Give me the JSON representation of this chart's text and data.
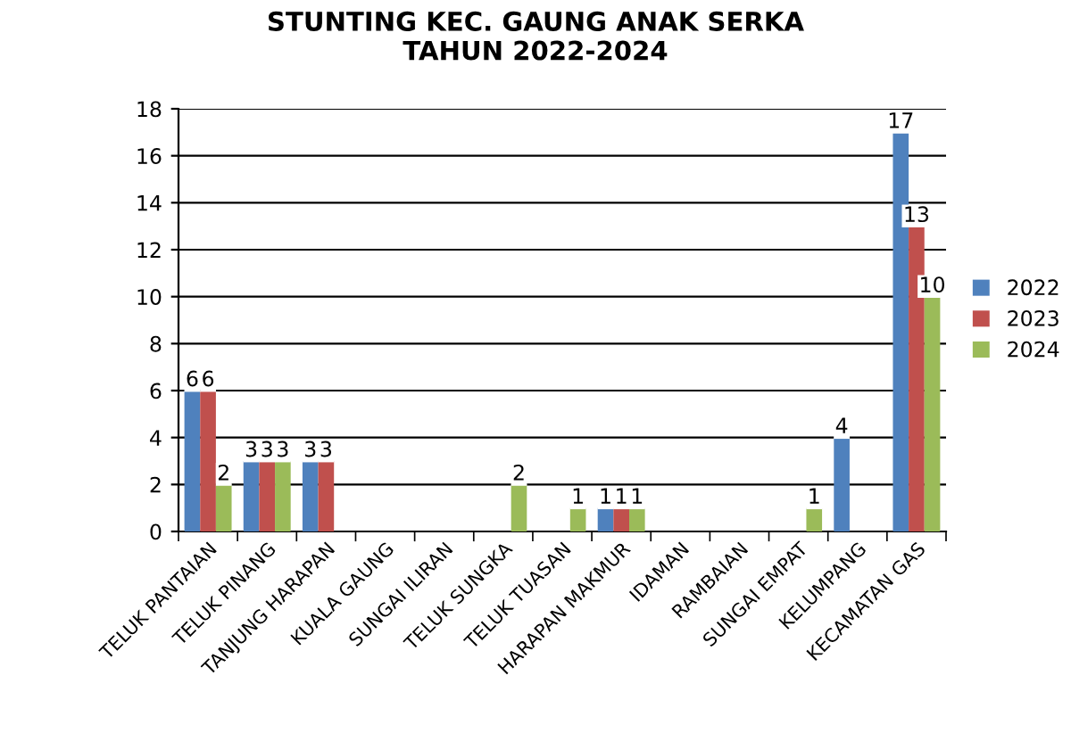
{
  "chart_data": {
    "type": "bar",
    "title": "STUNTING KEC. GAUNG ANAK SERKA\nTAHUN 2022-2024",
    "categories": [
      "TELUK PANTAIAN",
      "TELUK PINANG",
      "TANJUNG HARAPAN",
      "KUALA GAUNG",
      "SUNGAI ILIRAN",
      "TELUK SUNGKA",
      "TELUK TUASAN",
      "HARAPAN MAKMUR",
      "IDAMAN",
      "RAMBAIAN",
      "SUNGAI EMPAT",
      "KELUMPANG",
      "KECAMATAN GAS"
    ],
    "series": [
      {
        "name": "2022",
        "color": "#4f81bd",
        "values": [
          6,
          3,
          3,
          null,
          null,
          null,
          null,
          1,
          null,
          null,
          null,
          4,
          17
        ]
      },
      {
        "name": "2023",
        "color": "#c0504d",
        "values": [
          6,
          3,
          3,
          null,
          null,
          null,
          null,
          1,
          null,
          null,
          null,
          null,
          13
        ]
      },
      {
        "name": "2024",
        "color": "#9bbb59",
        "values": [
          2,
          3,
          null,
          null,
          null,
          2,
          1,
          1,
          null,
          null,
          1,
          null,
          10
        ]
      }
    ],
    "ylim": [
      0,
      18
    ],
    "yticks": [
      0,
      2,
      4,
      6,
      8,
      10,
      12,
      14,
      16,
      18
    ],
    "grid": "y",
    "legend": "right",
    "data_labels": true
  }
}
